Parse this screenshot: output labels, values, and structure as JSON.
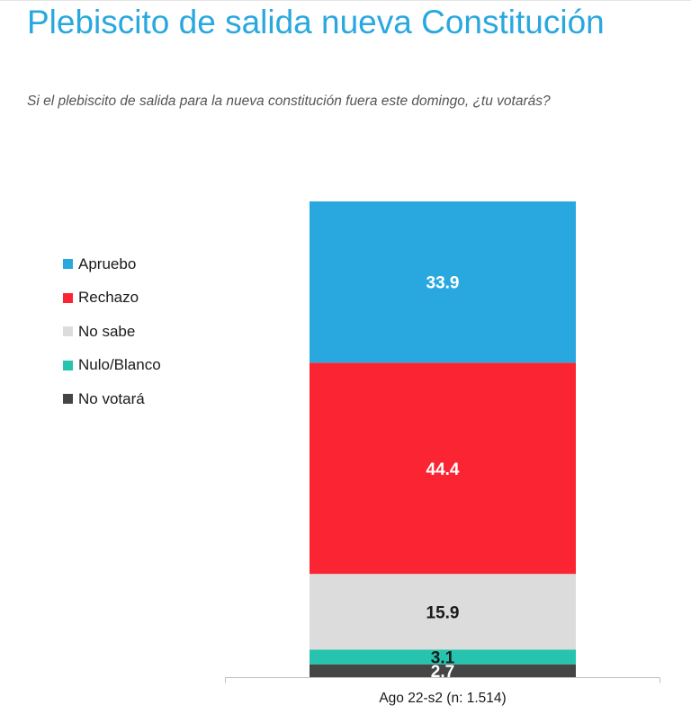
{
  "title": "Plebiscito de salida nueva Constitución",
  "subtitle": "Si el plebiscito de salida para la nueva constitución fuera este domingo, ¿tu votarás?",
  "chart_data": {
    "type": "bar",
    "stacked": true,
    "title": "Plebiscito de salida nueva Constitución",
    "subtitle": "Si el plebiscito de salida para la nueva constitución fuera este domingo, ¿tu votarás?",
    "categories": [
      "Ago 22-s2 (n: 1.514)"
    ],
    "series": [
      {
        "name": "Apruebo",
        "values": [
          33.9
        ],
        "color": "#29a8df",
        "label_color": "#ffffff"
      },
      {
        "name": "Rechazo",
        "values": [
          44.4
        ],
        "color": "#fb2433",
        "label_color": "#ffffff"
      },
      {
        "name": "No sabe",
        "values": [
          15.9
        ],
        "color": "#dcdcdc",
        "label_color": "#1a1a1a"
      },
      {
        "name": "Nulo/Blanco",
        "values": [
          3.1
        ],
        "color": "#26c4ae",
        "label_color": "#1a1a1a"
      },
      {
        "name": "No votará",
        "values": [
          2.7
        ],
        "color": "#454545",
        "label_color": "#ffffff"
      }
    ],
    "stack_order_bottom_to_top": [
      "No votará",
      "Nulo/Blanco",
      "No sabe",
      "Rechazo",
      "Apruebo"
    ],
    "legend_position": "left",
    "grid": false,
    "ylim": [
      0,
      100
    ]
  }
}
